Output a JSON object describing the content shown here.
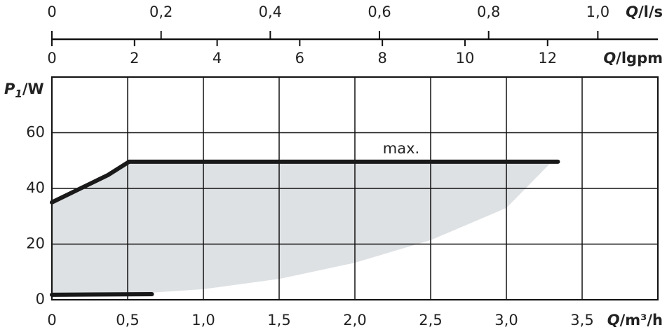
{
  "chart_data": {
    "type": "line",
    "ylabel": {
      "symbol": "P",
      "subscript": "1",
      "unit": "/W"
    },
    "xlabel": {
      "symbol": "Q",
      "unit": "/m³/h"
    },
    "x2label": {
      "symbol": "Q",
      "unit": "/l/s"
    },
    "x3label": {
      "symbol": "Q",
      "unit": "/lgpm"
    },
    "xlim": [
      0,
      4
    ],
    "ylim": [
      0,
      80
    ],
    "xticks": [
      0,
      {
        "value": 0.5,
        "label": "0,5"
      },
      {
        "value": 1.0,
        "label": "1,0"
      },
      {
        "value": 1.5,
        "label": "1,5"
      },
      {
        "value": 2.0,
        "label": "2,0"
      },
      {
        "value": 2.5,
        "label": "2,5"
      },
      {
        "value": 3.0,
        "label": "3,0"
      },
      {
        "value": 3.5,
        "label": "3,5"
      }
    ],
    "yticks": [
      0,
      20,
      40,
      60
    ],
    "x2lim": [
      0,
      1.11
    ],
    "x2ticks": [
      0,
      {
        "value": 0.2,
        "label": "0,2"
      },
      {
        "value": 0.4,
        "label": "0,4"
      },
      {
        "value": 0.6,
        "label": "0,6"
      },
      {
        "value": 0.8,
        "label": "0,8"
      },
      {
        "value": 1.0,
        "label": "1,0"
      }
    ],
    "x3lim": [
      0,
      14.67
    ],
    "x3ticks": [
      0,
      2,
      4,
      6,
      8,
      10,
      12
    ],
    "grid": true,
    "region": {
      "color": "#dde1e3",
      "x": [
        0,
        0.37,
        0.51,
        3.3,
        3.0,
        2.5,
        2.0,
        1.5,
        1.0,
        0.5,
        0
      ],
      "y": [
        35,
        44.8,
        49.6,
        49.6,
        33,
        21.4,
        13.3,
        7.5,
        3.8,
        2,
        2
      ]
    },
    "series": [
      {
        "name": "max.",
        "color": "#1a1a1a",
        "x": [
          0,
          0.37,
          0.51,
          3.34
        ],
        "values": [
          35,
          44.8,
          49.6,
          49.6
        ]
      },
      {
        "color": "#1a1a1a",
        "x": [
          0,
          0.66
        ],
        "values": [
          1.8,
          2.0
        ]
      }
    ]
  }
}
